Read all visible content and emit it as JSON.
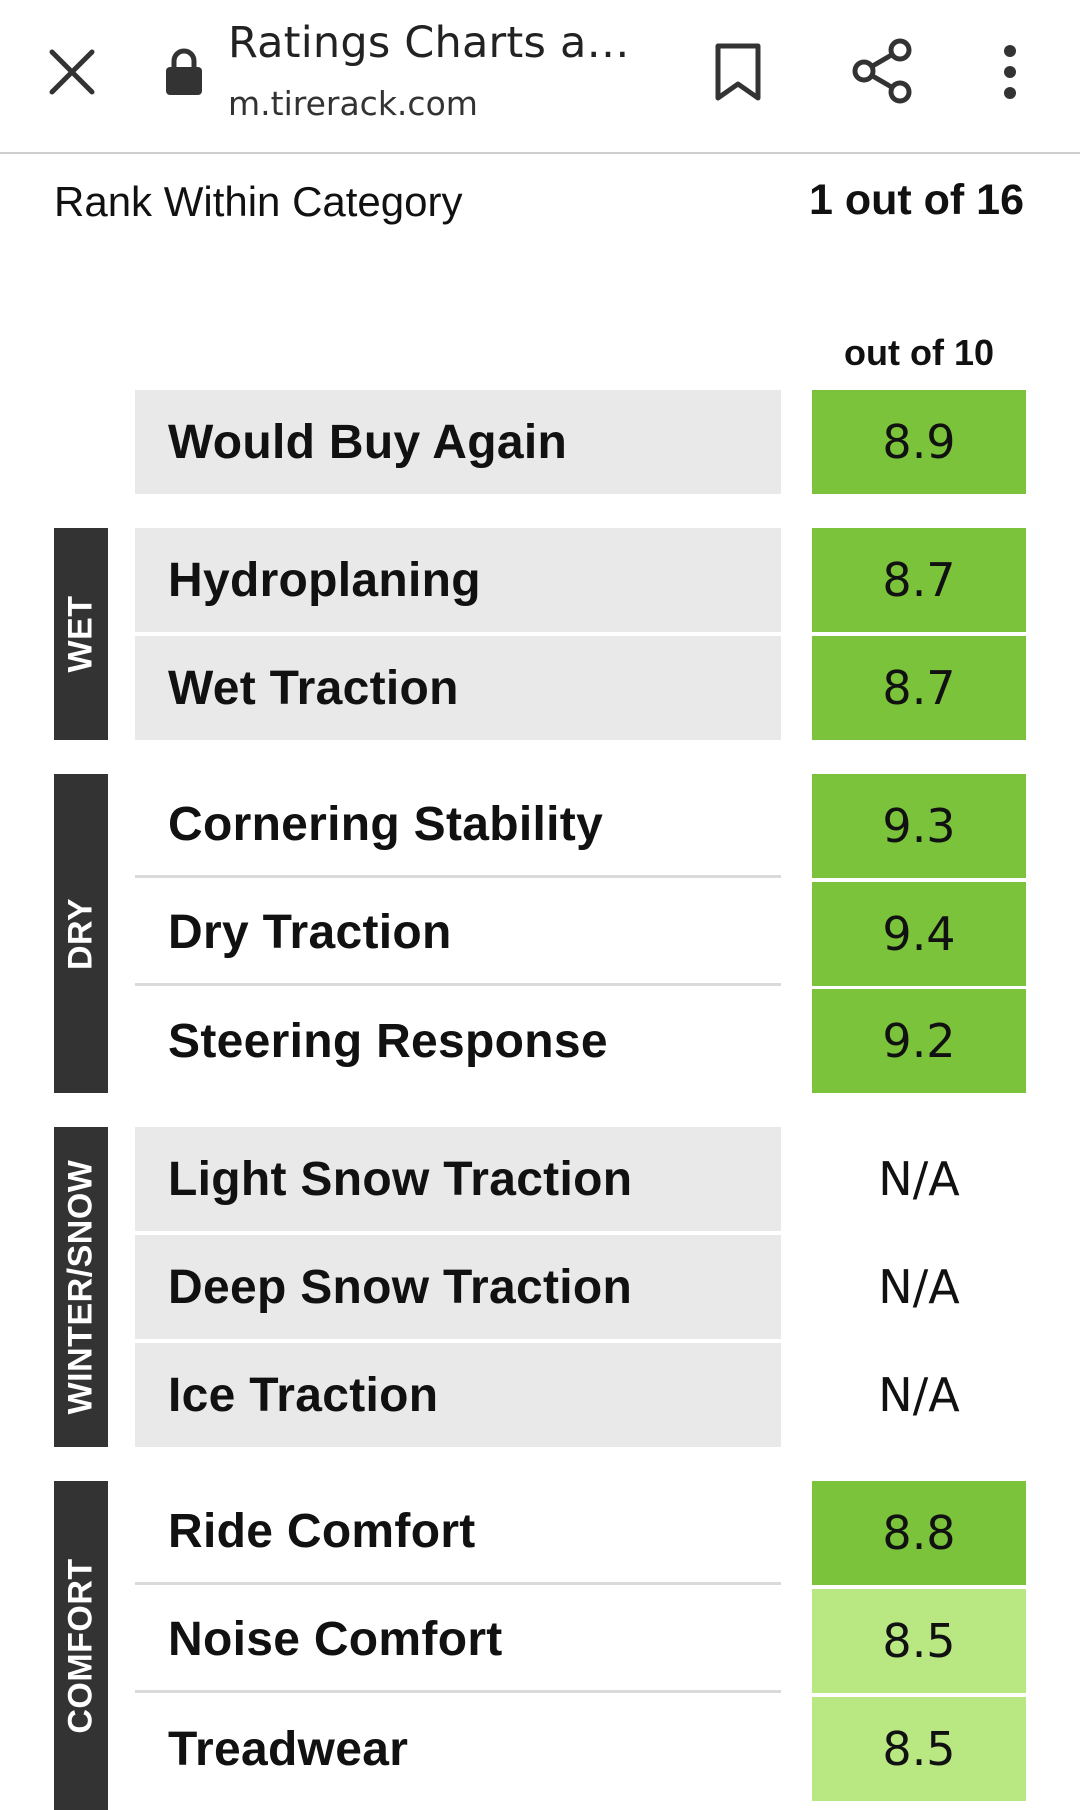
{
  "browser": {
    "title": "Ratings Charts an…",
    "url": "m.tirerack.com",
    "icons": [
      "close-icon",
      "lock-icon",
      "bookmark-icon",
      "share-icon",
      "more-vert-icon"
    ]
  },
  "rank": {
    "label": "Rank Within Category",
    "value": "1 out of 16"
  },
  "scale_label": "out of 10",
  "colors": {
    "group_tab": "#333333",
    "row_shade": "#e9e9e9",
    "score_high": "#7ac33a",
    "score_mid": "#b9e882"
  },
  "groups": [
    {
      "name": "",
      "rows": [
        {
          "label": "Would Buy Again",
          "value": "8.9"
        }
      ]
    },
    {
      "name": "WET",
      "rows": [
        {
          "label": "Hydroplaning",
          "value": "8.7"
        },
        {
          "label": "Wet Traction",
          "value": "8.7"
        }
      ]
    },
    {
      "name": "DRY",
      "rows": [
        {
          "label": "Cornering Stability",
          "value": "9.3"
        },
        {
          "label": "Dry Traction",
          "value": "9.4"
        },
        {
          "label": "Steering Response",
          "value": "9.2"
        }
      ]
    },
    {
      "name": "WINTER/SNOW",
      "rows": [
        {
          "label": "Light Snow Traction",
          "value": "N/A"
        },
        {
          "label": "Deep Snow Traction",
          "value": "N/A"
        },
        {
          "label": "Ice Traction",
          "value": "N/A"
        }
      ]
    },
    {
      "name": "COMFORT",
      "rows": [
        {
          "label": "Ride Comfort",
          "value": "8.8"
        },
        {
          "label": "Noise Comfort",
          "value": "8.5"
        },
        {
          "label": "Treadwear",
          "value": "8.5"
        }
      ]
    }
  ]
}
